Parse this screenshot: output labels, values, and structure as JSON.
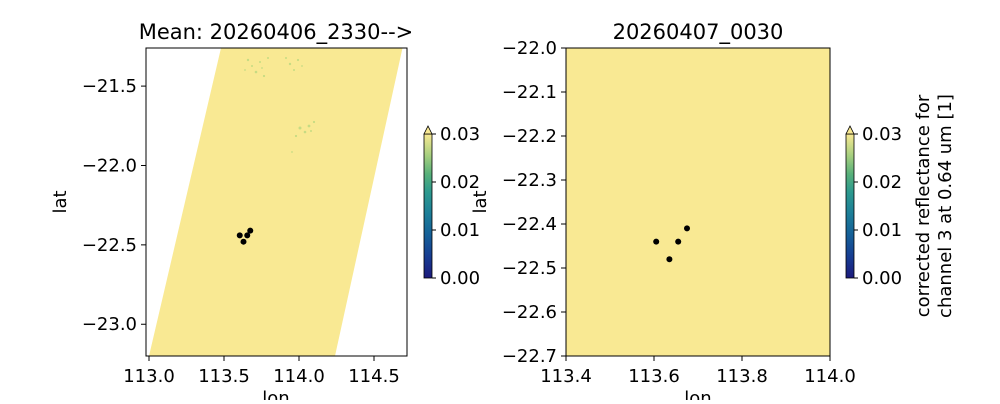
{
  "chart_data": [
    {
      "type": "heatmap",
      "title": "Mean: 20260406_2330-->",
      "xlabel": "lon",
      "ylabel": "lat",
      "xlim": [
        112.98,
        114.72
      ],
      "ylim": [
        -23.2,
        -21.26
      ],
      "xticks": [
        113.0,
        113.5,
        114.0,
        114.5
      ],
      "xtick_labels": [
        "113.0",
        "113.5",
        "114.0",
        "114.5"
      ],
      "yticks": [
        -21.5,
        -22.0,
        -22.5,
        -23.0
      ],
      "ytick_labels": [
        "−21.5",
        "−22.0",
        "−22.5",
        "−23.0"
      ],
      "swath_corners": [
        [
          113.48,
          -21.26
        ],
        [
          114.69,
          -21.26
        ],
        [
          114.24,
          -23.2
        ],
        [
          113.0,
          -23.2
        ]
      ],
      "fill_color": "#f9e993",
      "colorbar": {
        "min": 0.0,
        "max": 0.03,
        "ticks": [
          "0.00",
          "0.01",
          "0.02",
          "0.03"
        ],
        "label": ""
      },
      "points": [
        [
          113.605,
          -22.44
        ],
        [
          113.63,
          -22.48
        ],
        [
          113.655,
          -22.44
        ],
        [
          113.675,
          -22.41
        ]
      ],
      "point_color": "#000000"
    },
    {
      "type": "heatmap",
      "title": "20260407_0030",
      "xlabel": "lon",
      "ylabel": "lat",
      "xlim": [
        113.4,
        114.0
      ],
      "ylim": [
        -22.7,
        -22.0
      ],
      "xticks": [
        113.4,
        113.6,
        113.8,
        114.0
      ],
      "xtick_labels": [
        "113.4",
        "113.6",
        "113.8",
        "114.0"
      ],
      "yticks": [
        -22.0,
        -22.1,
        -22.2,
        -22.3,
        -22.4,
        -22.5,
        -22.6,
        -22.7
      ],
      "ytick_labels": [
        "−22.0",
        "−22.1",
        "−22.2",
        "−22.3",
        "−22.4",
        "−22.5",
        "−22.6",
        "−22.7"
      ],
      "fill_color": "#f9e993",
      "colorbar": {
        "min": 0.0,
        "max": 0.03,
        "ticks": [
          "0.00",
          "0.01",
          "0.02",
          "0.03"
        ],
        "label": [
          "corrected reflectance for",
          "channel 3 at 0.64 um [1]"
        ]
      },
      "points": [
        [
          113.605,
          -22.44
        ],
        [
          113.635,
          -22.48
        ],
        [
          113.655,
          -22.44
        ],
        [
          113.675,
          -22.41
        ]
      ],
      "point_color": "#000000"
    }
  ]
}
